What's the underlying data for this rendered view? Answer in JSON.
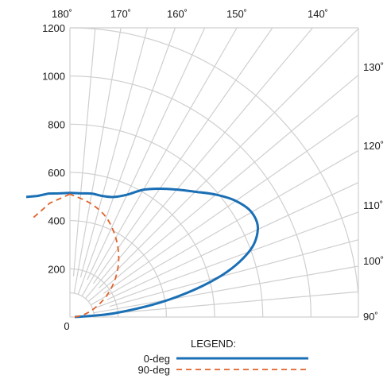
{
  "chart_data": {
    "type": "line",
    "subtype": "polar-quadrant",
    "title": "",
    "radial_ticks": [
      "0",
      "200",
      "400",
      "600",
      "800",
      "1000",
      "1200"
    ],
    "radial_range": [
      0,
      1200
    ],
    "angle_ticks_top": [
      "180˚",
      "170˚",
      "160˚",
      "150˚",
      "140˚"
    ],
    "angle_ticks_right": [
      "130˚",
      "120˚",
      "110˚",
      "100˚",
      "90˚"
    ],
    "grid": true,
    "legend": {
      "title": "LEGEND:",
      "placement": "bottom-center",
      "entries": [
        {
          "label": "0-deg",
          "color": "#1a6fb5",
          "style": "solid"
        },
        {
          "label": "90-deg",
          "color": "#e0622a",
          "style": "dashed"
        }
      ]
    },
    "series": [
      {
        "name": "0-deg",
        "color": "#1a6fb5",
        "angles": [
          90,
          95,
          100,
          105,
          110,
          115,
          120,
          125,
          130,
          135,
          140,
          145,
          150,
          155,
          160,
          165,
          170,
          175,
          180
        ],
        "values": [
          20,
          190,
          420,
          640,
          790,
          860,
          870,
          840,
          790,
          735,
          690,
          650,
          610,
          560,
          530,
          520,
          520,
          515,
          515
        ]
      },
      {
        "name": "90-deg",
        "color": "#e0622a",
        "angles": [
          90,
          100,
          110,
          120,
          130,
          140,
          150,
          160,
          170,
          180
        ],
        "values": [
          20,
          60,
          110,
          175,
          245,
          315,
          380,
          440,
          480,
          510
        ]
      }
    ]
  }
}
